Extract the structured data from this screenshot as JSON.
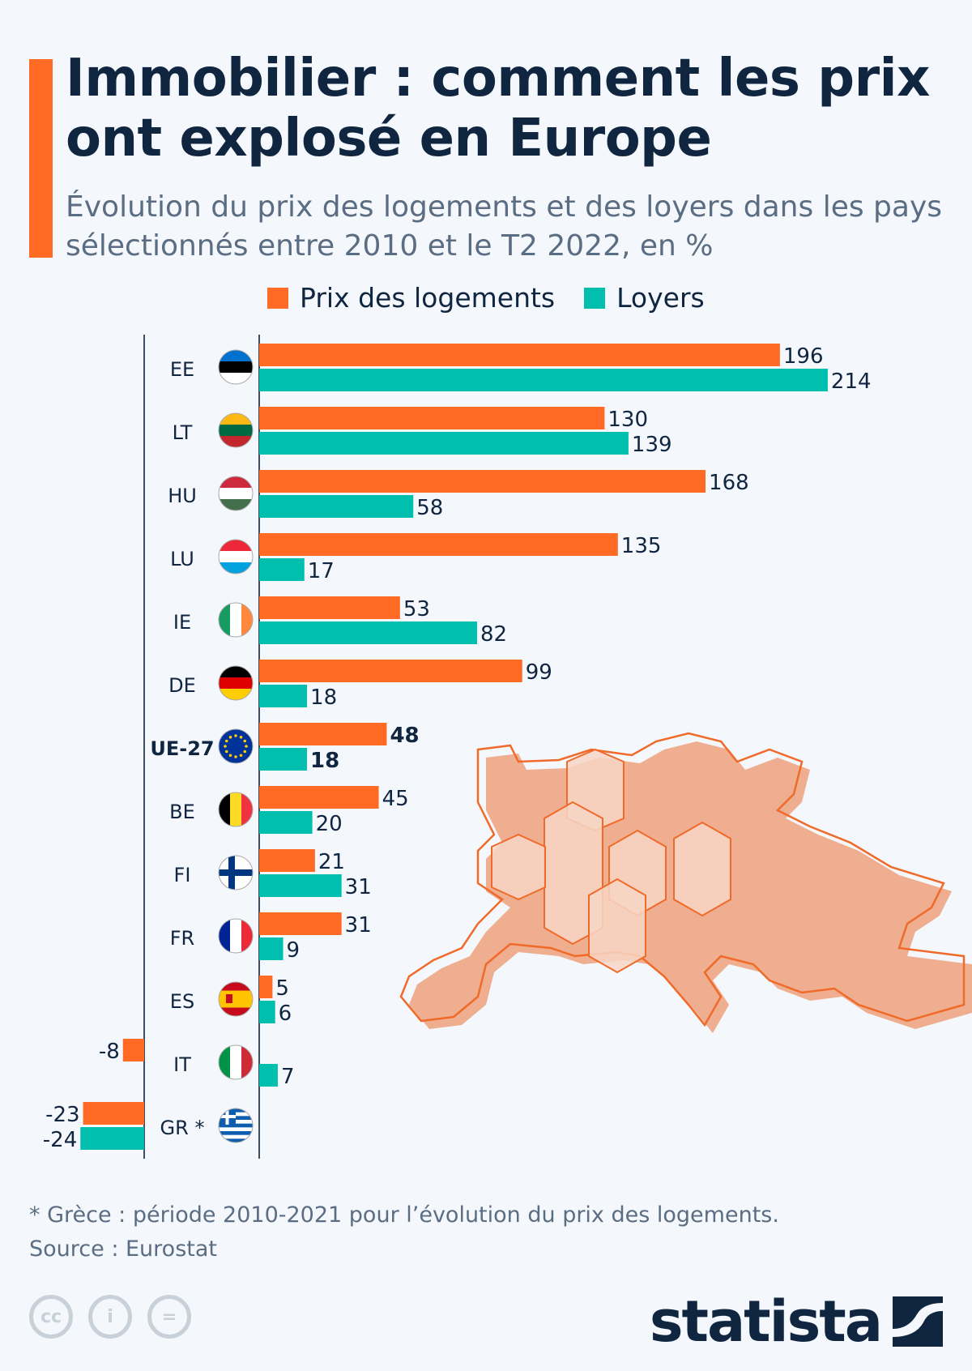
{
  "title": "Immobilier : comment les prix ont explosé en Europe",
  "subtitle": "Évolution du prix des logements et des loyers dans les pays sélectionnés entre 2010 et le T2 2022, en %",
  "legend": [
    {
      "label": "Prix des logements",
      "color": "#ff6b24"
    },
    {
      "label": "Loyers",
      "color": "#00bfae"
    }
  ],
  "chart_data": {
    "type": "bar",
    "orientation": "horizontal",
    "categories": [
      "EE",
      "LT",
      "HU",
      "LU",
      "IE",
      "DE",
      "UE-27",
      "BE",
      "FI",
      "FR",
      "ES",
      "IT",
      "GR *"
    ],
    "highlight": "UE-27",
    "series": [
      {
        "name": "Prix des logements",
        "color": "#ff6b24",
        "values": [
          196,
          130,
          168,
          135,
          53,
          99,
          48,
          45,
          21,
          31,
          5,
          -8,
          -23
        ]
      },
      {
        "name": "Loyers",
        "color": "#00bfae",
        "values": [
          214,
          139,
          58,
          17,
          82,
          18,
          18,
          20,
          31,
          9,
          6,
          7,
          -24
        ]
      }
    ],
    "flags": {
      "EE": [
        "#0072ce",
        "#000000",
        "#ffffff"
      ],
      "LT": [
        "#fdb913",
        "#006a44",
        "#c1272d"
      ],
      "HU": [
        "#cd2a3e",
        "#ffffff",
        "#436f4d"
      ],
      "LU": [
        "#ed2939",
        "#ffffff",
        "#00a1de"
      ],
      "IE": [
        "#169b62",
        "#ffffff",
        "#ff883e"
      ],
      "DE": [
        "#000000",
        "#dd0000",
        "#ffce00"
      ],
      "UE-27": [
        "#003399",
        "#ffcc00"
      ],
      "BE": [
        "#000000",
        "#fdda24",
        "#ef3340"
      ],
      "FI": [
        "#ffffff",
        "#003580"
      ],
      "FR": [
        "#002395",
        "#ffffff",
        "#ed2939"
      ],
      "ES": [
        "#c60b1e",
        "#ffc400",
        "#c60b1e"
      ],
      "IT": [
        "#009246",
        "#ffffff",
        "#ce2b37"
      ],
      "GR *": [
        "#0d5eaf",
        "#ffffff"
      ]
    }
  },
  "footnote": "* Grèce : période 2010-2021 pour l’évolution du prix des logements.",
  "source": "Source : Eurostat",
  "license_icons": [
    "cc-icon",
    "attribution-icon",
    "no-derivatives-icon"
  ],
  "brand": "statista"
}
